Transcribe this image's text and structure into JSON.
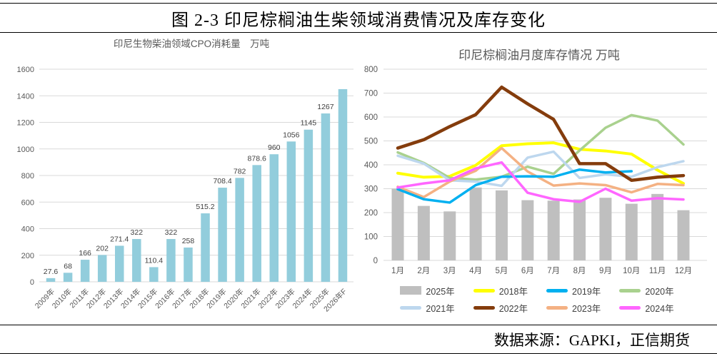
{
  "header": {
    "title": "图 2-3 印尼棕榈油生柴领域消费情况及库存变化"
  },
  "footer": {
    "source": "数据来源：GAPKI，正信期货"
  },
  "colors": {
    "grid": "#D9D9D9",
    "axis_text": "#595959",
    "bar_label_text": "#404040",
    "left_bar": "#92CDDC",
    "right_bar": "#BFBFBF"
  },
  "chart_data": [
    {
      "type": "bar",
      "title": "印尼生物柴油领域CPO消耗量　万吨",
      "categories": [
        "2009年",
        "2010年",
        "2011年",
        "2012年",
        "2013年",
        "2014年",
        "2015年",
        "2016年",
        "2017年",
        "2018年",
        "2019年",
        "2020年",
        "2021年",
        "2022年",
        "2023年",
        "2024年",
        "2025年",
        "2026年F"
      ],
      "values": [
        27.6,
        68,
        166,
        202,
        271.4,
        322,
        110.4,
        322,
        258,
        515.2,
        708.4,
        782,
        878.6,
        960,
        1056,
        1145,
        1267,
        1450
      ],
      "bar_labels": [
        "27.6",
        "68",
        "166",
        "202",
        "271.4",
        "322",
        "110.4",
        "322",
        "258",
        "515.2",
        "708.4",
        "782",
        "878.6",
        "960",
        "1056",
        "1145",
        "1267",
        ""
      ],
      "xlabel": "",
      "ylabel": "",
      "ylim": [
        0,
        1600
      ],
      "ytick_step": 200,
      "grid": true,
      "bar_color": "#92CDDC",
      "legend_position": "none"
    },
    {
      "type": "combo",
      "title": "印尼棕榈油月度库存情况  万吨",
      "categories": [
        "1月",
        "2月",
        "3月",
        "4月",
        "5月",
        "6月",
        "7月",
        "8月",
        "9月",
        "10月",
        "11月",
        "12月"
      ],
      "bar_series": {
        "name": "2025年",
        "color": "#BFBFBF",
        "values": [
          300,
          228,
          205,
          305,
          293,
          252,
          250,
          255,
          262,
          237,
          278,
          210
        ]
      },
      "line_series": [
        {
          "name": "2018年",
          "color": "#FFFF00",
          "width": 4,
          "values": [
            365,
            348,
            352,
            398,
            480,
            488,
            492,
            465,
            458,
            445,
            378,
            322
          ]
        },
        {
          "name": "2020年",
          "color": "#A9D18E",
          "width": 3.5,
          "values": [
            452,
            408,
            345,
            338,
            350,
            392,
            362,
            460,
            555,
            608,
            585,
            485
          ]
        },
        {
          "name": "2021年",
          "color": "#BDD7EE",
          "width": 3.5,
          "values": [
            438,
            405,
            335,
            330,
            312,
            430,
            455,
            345,
            360,
            350,
            390,
            415
          ]
        },
        {
          "name": "2023年",
          "color": "#F4B183",
          "width": 3.5,
          "values": [
            308,
            265,
            330,
            375,
            470,
            372,
            313,
            322,
            315,
            285,
            320,
            315
          ]
        },
        {
          "name": "2019年",
          "color": "#00B0F0",
          "width": 3.5,
          "values": [
            298,
            256,
            242,
            315,
            350,
            352,
            350,
            380,
            368,
            373,
            null,
            null
          ]
        },
        {
          "name": "2024年",
          "color": "#FF66FF",
          "width": 3.5,
          "values": [
            305,
            322,
            335,
            385,
            410,
            283,
            256,
            245,
            300,
            250,
            260,
            255
          ]
        },
        {
          "name": "2022年",
          "color": "#843C0C",
          "width": 4.5,
          "values": [
            470,
            505,
            560,
            610,
            725,
            655,
            590,
            405,
            405,
            335,
            348,
            355
          ]
        }
      ],
      "xlabel": "",
      "ylabel": "",
      "ylim": [
        0,
        800
      ],
      "ytick_step": 100,
      "grid": true,
      "legend_position": "bottom",
      "legend_rows": [
        [
          {
            "label": "2025年",
            "color": "#BFBFBF",
            "swatch": "bar"
          },
          {
            "label": "2018年",
            "color": "#FFFF00",
            "swatch": "line"
          },
          {
            "label": "2019年",
            "color": "#00B0F0",
            "swatch": "line"
          },
          {
            "label": "2020年",
            "color": "#A9D18E",
            "swatch": "line"
          }
        ],
        [
          {
            "label": "2021年",
            "color": "#BDD7EE",
            "swatch": "line"
          },
          {
            "label": "2022年",
            "color": "#843C0C",
            "swatch": "line"
          },
          {
            "label": "2023年",
            "color": "#F4B183",
            "swatch": "line"
          },
          {
            "label": "2024年",
            "color": "#FF66FF",
            "swatch": "line"
          }
        ]
      ]
    }
  ]
}
